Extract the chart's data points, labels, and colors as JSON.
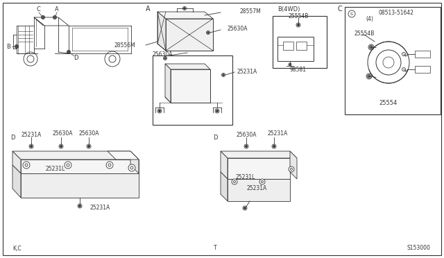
{
  "bg_color": "#ffffff",
  "fig_width": 6.4,
  "fig_height": 3.72,
  "labels": {
    "bottom_left": "K,C",
    "bottom_mid": "T",
    "bottom_right": "S153000"
  }
}
